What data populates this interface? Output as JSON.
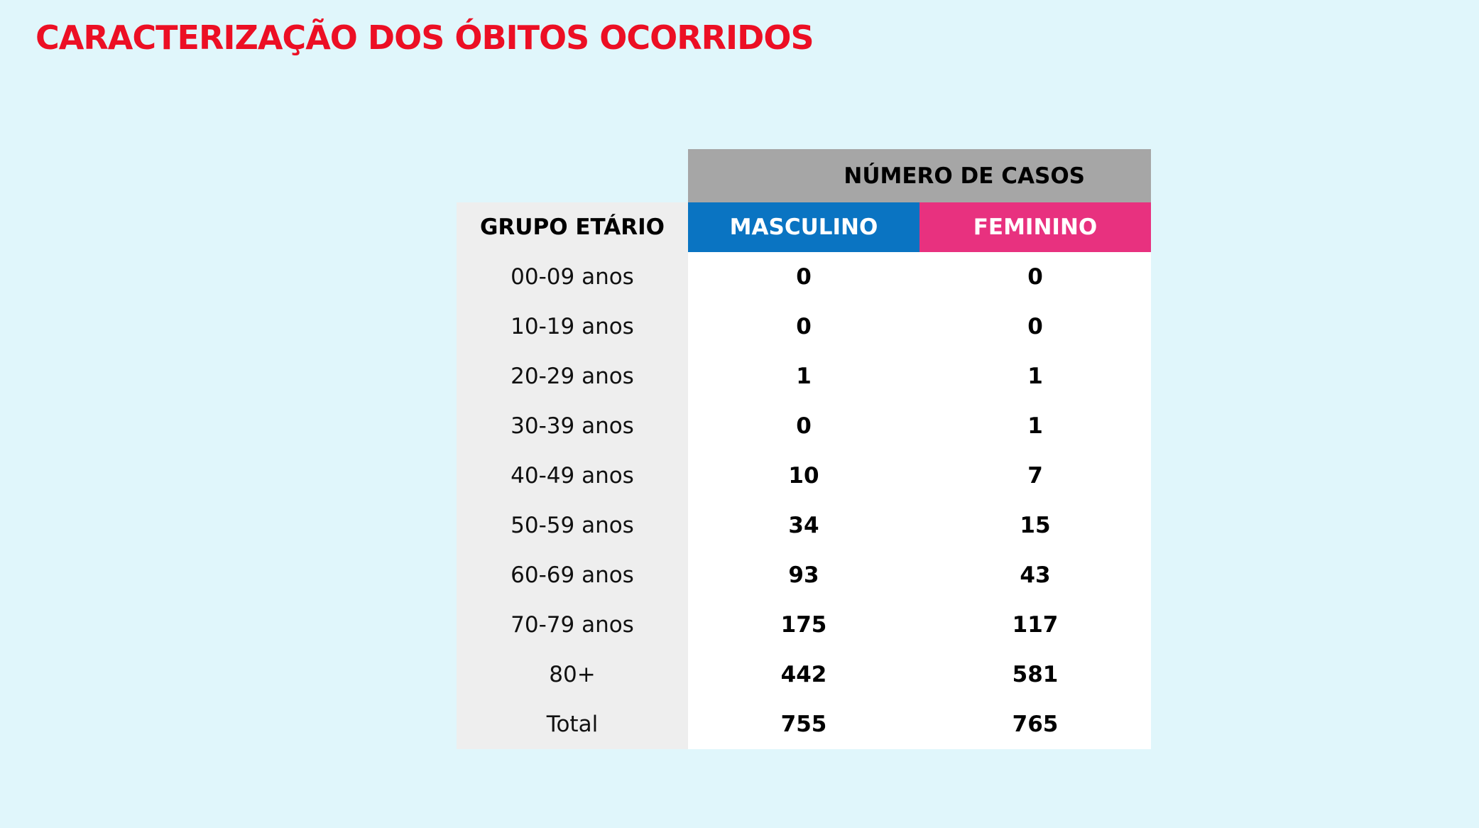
{
  "title": "CARACTERIZAÇÃO DOS ÓBITOS OCORRIDOS",
  "table": {
    "super_header": "NÚMERO DE CASOS",
    "group_header": "GRUPO ETÁRIO",
    "male_header": "MASCULINO",
    "female_header": "FEMININO",
    "rows": [
      {
        "age": "00-09 anos",
        "male": "0",
        "female": "0"
      },
      {
        "age": "10-19 anos",
        "male": "0",
        "female": "0"
      },
      {
        "age": "20-29 anos",
        "male": "1",
        "female": "1"
      },
      {
        "age": "30-39 anos",
        "male": "0",
        "female": "1"
      },
      {
        "age": "40-49 anos",
        "male": "10",
        "female": "7"
      },
      {
        "age": "50-59 anos",
        "male": "34",
        "female": "15"
      },
      {
        "age": "60-69 anos",
        "male": "93",
        "female": "43"
      },
      {
        "age": "70-79 anos",
        "male": "175",
        "female": "117"
      },
      {
        "age": "80+",
        "male": "442",
        "female": "581"
      },
      {
        "age": "Total",
        "male": "755",
        "female": "765"
      }
    ]
  },
  "colors": {
    "background": "#e0f6fb",
    "title": "#ec0f24",
    "super_header_bg": "#a6a6a6",
    "male_header_bg": "#0a74c2",
    "female_header_bg": "#e8317f",
    "age_column_bg": "#eeeeee",
    "value_bg": "#ffffff"
  }
}
